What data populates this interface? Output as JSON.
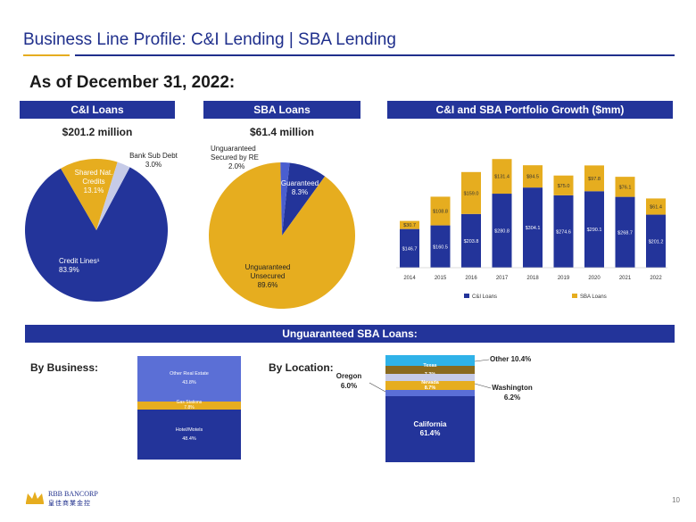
{
  "header": {
    "title": "Business Line Profile:  C&I Lending | SBA Lending",
    "as_of": "As of December 31, 2022:"
  },
  "ci_loans": {
    "band": "C&I Loans",
    "amount": "$201.2 million",
    "slices": [
      {
        "label": "Credit Lines¹",
        "pct": "83.9%",
        "value": 83.9,
        "color": "#23349a"
      },
      {
        "label": "Shared Nat. Credits",
        "pct": "13.1%",
        "value": 13.1,
        "color": "#e6ad1f"
      },
      {
        "label": "Bank Sub Debt",
        "pct": "3.0%",
        "value": 3.0,
        "color": "#c6cbe8"
      }
    ]
  },
  "sba_loans": {
    "band": "SBA Loans",
    "amount": "$61.4 million",
    "slices": [
      {
        "label": "Guaranteed",
        "pct": "8.3%",
        "value": 8.3,
        "color": "#23349a"
      },
      {
        "label": "Unguaranteed Unsecured",
        "pct": "89.6%",
        "value": 89.6,
        "color": "#e6ad1f"
      },
      {
        "label": "Unguaranteed Secured by RE",
        "pct": "2.0%",
        "value": 2.0,
        "color": "#4a5ed0"
      }
    ]
  },
  "growth": {
    "band": "C&I and SBA Portfolio Growth ($mm)",
    "legend_ci": "C&I Loans",
    "legend_sba": "SBA Loans"
  },
  "unguaranteed": {
    "band": "Unguaranteed SBA Loans:",
    "by_business_label": "By Business:",
    "by_location_label": "By Location:",
    "business": [
      {
        "label": "Other Real Estate",
        "pct": "43.8%",
        "value": 43.8,
        "color": "#5b6fd6"
      },
      {
        "label": "Gas Stations",
        "pct": "7.8%",
        "value": 7.8,
        "color": "#e6ad1f"
      },
      {
        "label": "Hotel/Motels",
        "pct": "48.4%",
        "value": 48.4,
        "color": "#23349a"
      }
    ],
    "location": [
      {
        "label": "Other",
        "pct": "10.4%",
        "value": 10.4,
        "color": "#2fb2e8"
      },
      {
        "label": "Texas",
        "pct": "7.3%",
        "value": 7.3,
        "color": "#8a6a1e"
      },
      {
        "label": "Washington",
        "pct": "6.2%",
        "value": 6.2,
        "color": "#c6cbe8"
      },
      {
        "label": "Nevada",
        "pct": "8.7%",
        "value": 8.7,
        "color": "#e6ad1f"
      },
      {
        "label": "Oregon",
        "pct": "6.0%",
        "value": 6.0,
        "color": "#5b6fd6"
      },
      {
        "label": "California",
        "pct": "61.4%",
        "value": 61.4,
        "color": "#23349a"
      }
    ]
  },
  "footer": {
    "logo_line1": "RBB BANCORP",
    "logo_line2": "皇佳商業金控",
    "page_number": "10"
  },
  "chart_data": {
    "type": "bar",
    "title": "C&I and SBA Portfolio Growth ($mm)",
    "categories": [
      "2014",
      "2015",
      "2016",
      "2017",
      "2018",
      "2019",
      "2020",
      "2021",
      "2022"
    ],
    "series": [
      {
        "name": "C&I Loans",
        "color": "#23349a",
        "values": [
          146.7,
          160.5,
          203.8,
          280.8,
          304.1,
          274.6,
          290.1,
          268.7,
          201.2
        ],
        "labels": [
          "$146.7",
          "$160.5",
          "$203.8",
          "$280.8",
          "$304.1",
          "$274.6",
          "$290.1",
          "$268.7",
          "$201.2"
        ]
      },
      {
        "name": "SBA Loans",
        "color": "#e6ad1f",
        "values": [
          30.7,
          108.8,
          159.0,
          131.4,
          84.5,
          75.0,
          97.8,
          76.1,
          61.4
        ],
        "labels": [
          "$30.7",
          "$108.8",
          "$159.0",
          "$131.4",
          "$84.5",
          "$75.0",
          "$97.8",
          "$76.1",
          "$61.4"
        ]
      }
    ],
    "stacked": true,
    "legend": "bottom",
    "grid": false
  }
}
